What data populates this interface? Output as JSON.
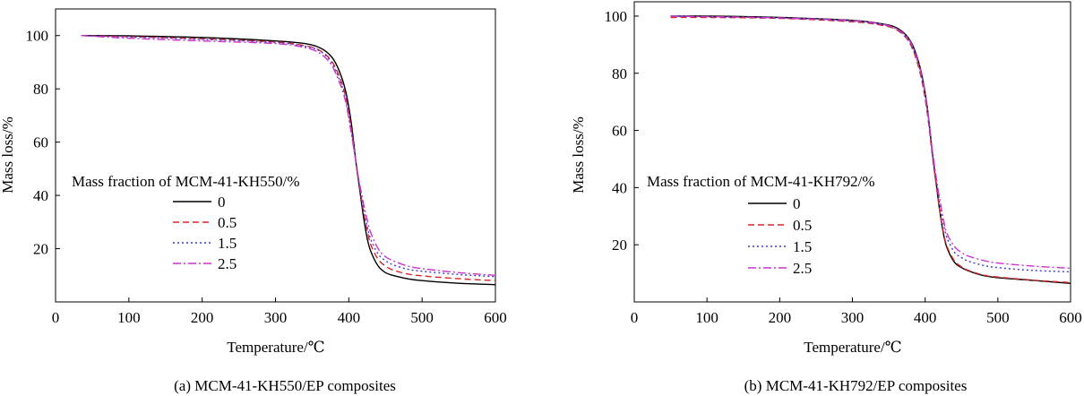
{
  "chart_data": [
    {
      "type": "line",
      "caption": "(a) MCM-41-KH550/EP composites",
      "xlabel": "Temperature/℃",
      "ylabel": "Mass loss/%",
      "xlim": [
        0,
        600
      ],
      "ylim": [
        0,
        110
      ],
      "xticks": [
        0,
        100,
        200,
        300,
        400,
        500,
        600
      ],
      "yticks": [
        20,
        40,
        60,
        80,
        100
      ],
      "grid": false,
      "legend_title": "Mass fraction of MCM-41-KH550/%",
      "legend_position": "center-left",
      "series": [
        {
          "name": "0",
          "color": "#000000",
          "dash": "solid",
          "x": [
            35,
            100,
            200,
            300,
            340,
            360,
            375,
            385,
            395,
            403,
            410,
            415,
            420,
            425,
            430,
            440,
            450,
            460,
            480,
            500,
            550,
            600
          ],
          "y": [
            100,
            99.9,
            99.3,
            98,
            97,
            95.5,
            92.5,
            88,
            80,
            68,
            52,
            42,
            32,
            24,
            19,
            13.5,
            11,
            10,
            8.7,
            8,
            7,
            6.5
          ]
        },
        {
          "name": "0.5",
          "color": "#d62728",
          "dash": "dashed",
          "x": [
            35,
            100,
            200,
            300,
            340,
            360,
            375,
            385,
            395,
            403,
            410,
            415,
            420,
            425,
            430,
            440,
            450,
            460,
            480,
            500,
            550,
            600
          ],
          "y": [
            100,
            99.6,
            98.8,
            97.6,
            96.2,
            94.5,
            91,
            86,
            78,
            66,
            52,
            43,
            34,
            27,
            21.5,
            16,
            13.5,
            12,
            10.5,
            9.8,
            8.7,
            8
          ]
        },
        {
          "name": "1.5",
          "color": "#3a3ad6",
          "dash": "dotted",
          "x": [
            35,
            100,
            200,
            300,
            340,
            360,
            375,
            385,
            395,
            403,
            410,
            415,
            420,
            425,
            430,
            440,
            450,
            460,
            480,
            500,
            550,
            600
          ],
          "y": [
            100,
            99.5,
            98.6,
            97.4,
            96,
            94.3,
            90.5,
            85,
            77,
            65,
            52,
            43,
            35,
            28.5,
            23.5,
            18,
            15.5,
            14,
            12.3,
            11.5,
            10.3,
            9.5
          ]
        },
        {
          "name": "2.5",
          "color": "#cc33cc",
          "dash": "dash-dot",
          "x": [
            35,
            100,
            200,
            300,
            340,
            360,
            375,
            385,
            395,
            403,
            410,
            415,
            420,
            425,
            430,
            440,
            450,
            460,
            480,
            500,
            550,
            600
          ],
          "y": [
            100,
            99,
            98,
            97,
            95.5,
            93.5,
            89.5,
            84,
            76,
            64,
            52,
            44,
            37,
            31,
            26,
            20,
            17,
            15.5,
            13.5,
            12.5,
            11,
            10
          ]
        }
      ]
    },
    {
      "type": "line",
      "caption": "(b) MCM-41-KH792/EP composites",
      "xlabel": "Temperature/℃",
      "ylabel": "Mass loss/%",
      "xlim": [
        0,
        600
      ],
      "ylim": [
        0,
        105
      ],
      "xticks": [
        0,
        100,
        200,
        300,
        400,
        500,
        600
      ],
      "yticks": [
        20,
        40,
        60,
        80,
        100
      ],
      "grid": false,
      "legend_title": "Mass fraction of MCM-41-KH792/%",
      "legend_position": "center-left",
      "series": [
        {
          "name": "0",
          "color": "#000000",
          "dash": "solid",
          "x": [
            50,
            100,
            200,
            300,
            340,
            360,
            375,
            385,
            395,
            403,
            410,
            415,
            420,
            425,
            430,
            440,
            450,
            460,
            480,
            500,
            550,
            600
          ],
          "y": [
            100,
            100,
            99.5,
            98.5,
            97.3,
            96,
            93,
            88.5,
            80,
            68,
            52,
            42,
            32,
            24,
            19,
            14,
            12,
            10.8,
            9.2,
            8.5,
            7.5,
            6.5
          ]
        },
        {
          "name": "0.5",
          "color": "#d62728",
          "dash": "dashed",
          "x": [
            50,
            100,
            200,
            300,
            340,
            360,
            375,
            385,
            395,
            403,
            410,
            415,
            420,
            425,
            430,
            440,
            450,
            460,
            480,
            500,
            550,
            600
          ],
          "y": [
            99.5,
            99.5,
            99.2,
            98,
            96.8,
            95.3,
            92,
            87,
            78,
            66,
            51,
            41.5,
            32,
            24.5,
            19.5,
            14.5,
            12.3,
            11,
            9.4,
            8.7,
            7.6,
            6.8
          ]
        },
        {
          "name": "1.5",
          "color": "#3a3ad6",
          "dash": "dotted",
          "x": [
            50,
            100,
            200,
            300,
            340,
            360,
            375,
            385,
            395,
            403,
            410,
            415,
            420,
            425,
            430,
            440,
            450,
            460,
            480,
            500,
            550,
            600
          ],
          "y": [
            100,
            99.8,
            99.3,
            98.2,
            97,
            95.5,
            92.3,
            87.5,
            79,
            67,
            52,
            43,
            34.5,
            27.5,
            22.5,
            17.5,
            15.5,
            14.2,
            12.8,
            12,
            11,
            10.5
          ]
        },
        {
          "name": "2.5",
          "color": "#cc33cc",
          "dash": "dash-dot",
          "x": [
            50,
            100,
            200,
            300,
            340,
            360,
            375,
            385,
            395,
            403,
            410,
            415,
            420,
            425,
            430,
            440,
            450,
            460,
            480,
            500,
            550,
            600
          ],
          "y": [
            100,
            99.8,
            99.4,
            98.4,
            97.2,
            95.7,
            92.7,
            88,
            79.5,
            67.5,
            53,
            44,
            36,
            29,
            24,
            19.5,
            17.3,
            16,
            14.5,
            13.6,
            12.5,
            11.8
          ]
        }
      ]
    }
  ]
}
